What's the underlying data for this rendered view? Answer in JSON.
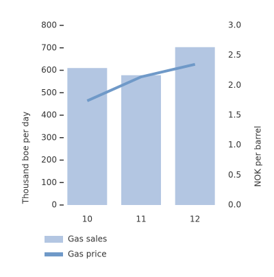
{
  "chart_data": {
    "type": "bar",
    "categories": [
      "10",
      "11",
      "12"
    ],
    "series": [
      {
        "name": "Gas sales",
        "color": "#b3c6e2",
        "values": [
          610,
          578,
          703
        ]
      },
      {
        "name": "Gas price",
        "color": "#6f99c8",
        "type": "line",
        "axis": "y2",
        "values": [
          1.74,
          2.14,
          2.35
        ]
      }
    ],
    "ylabel": "Thousand boe per day",
    "y2label": "NOK per barrel",
    "ylim": [
      0,
      800
    ],
    "yticks": [
      0,
      100,
      200,
      300,
      400,
      500,
      600,
      700,
      800
    ],
    "y2lim": [
      0,
      3
    ],
    "y2ticks": [
      {
        "value": 0,
        "label": "0.0"
      },
      0.5,
      {
        "value": 1,
        "label": "1.0"
      },
      1.5,
      {
        "value": 2,
        "label": "2.0"
      },
      2.5,
      {
        "value": 3,
        "label": "3.0"
      }
    ],
    "legend": "bottom"
  }
}
